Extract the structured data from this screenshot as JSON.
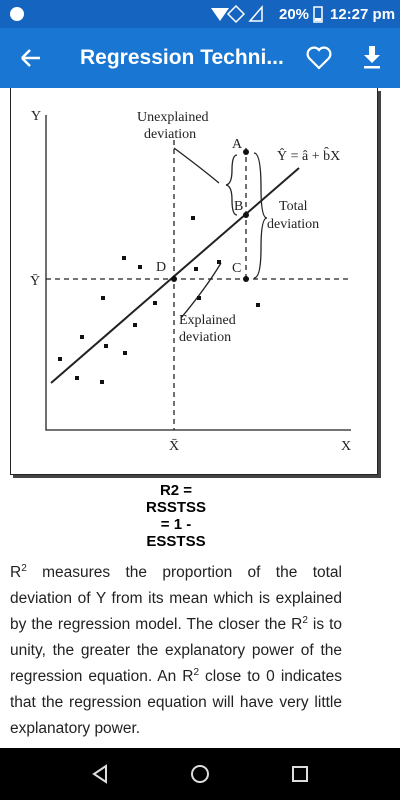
{
  "status_bar": {
    "battery": "20%",
    "time": "12:27 pm"
  },
  "app_bar": {
    "title": "Regression Techni..."
  },
  "figure": {
    "y_axis": "Y",
    "x_axis": "X",
    "y_mean": "Ȳ",
    "x_mean": "X̄",
    "unexplained": [
      "Unexplained",
      "deviation"
    ],
    "explained": [
      "Explained",
      "deviation"
    ],
    "total": [
      "Total",
      "deviation"
    ],
    "equation": "Ŷ = â + b̂X",
    "points": [
      "A",
      "B",
      "C",
      "D"
    ]
  },
  "formula": [
    "R2 =",
    "RSSTSS",
    "= 1 -",
    "ESSTSS"
  ],
  "body": [
    "R",
    "2",
    " measures the proportion of the total deviation of Y from its mean which is explained by the regression model. The closer the R",
    "2",
    " is to unity, the greater the explanatory power of the regression equation. An R",
    "2",
    " close to 0 indicates that the regression equation will have very little explanatory power."
  ]
}
